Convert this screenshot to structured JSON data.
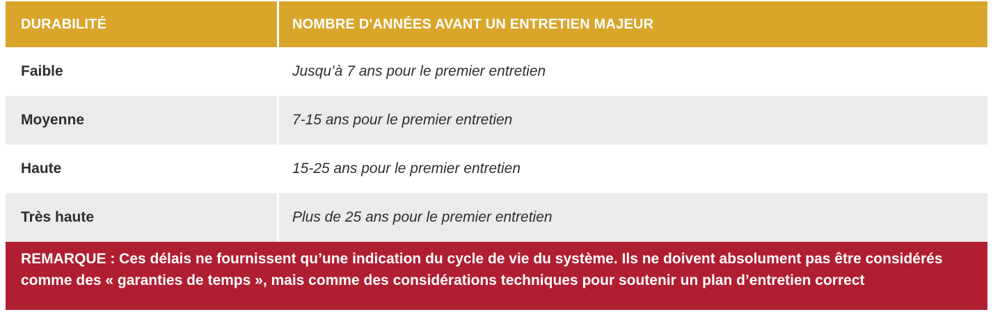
{
  "table": {
    "header": {
      "col1": "DURABILITÉ",
      "col2": "NOMBRE D'ANNÉES AVANT UN ENTRETIEN MAJEUR"
    },
    "rows": [
      {
        "durability": "Faible",
        "years": "Jusqu’à 7 ans pour le premier entretien"
      },
      {
        "durability": "Moyenne",
        "years": "7-15 ans pour le premier entretien"
      },
      {
        "durability": "Haute",
        "years": "15-25 ans pour le premier entretien"
      },
      {
        "durability": "Très haute",
        "years": "Plus de 25 ans pour le premier entretien"
      }
    ],
    "note": "REMARQUE : Ces délais ne fournissent qu’une indication du cycle de vie du système. Ils ne doivent absolument pas être considérés comme des « garanties de temps », mais comme des considérations techniques pour soutenir un plan d’entretien correct"
  },
  "colors": {
    "header_bg": "#D9A62B",
    "row_alt_bg": "#EBEBEB",
    "note_bg": "#B01E31",
    "body_text": "#2E2E2E",
    "header_text": "#FFFFFF"
  }
}
